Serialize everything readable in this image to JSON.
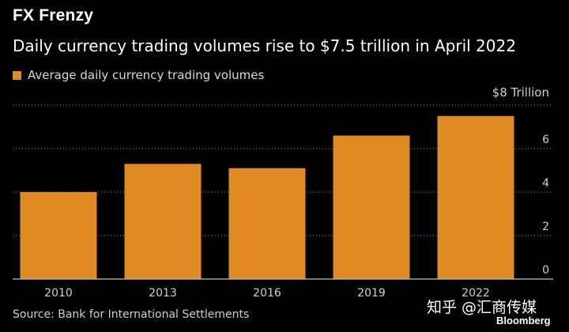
{
  "title": "FX Frenzy",
  "subtitle": "Daily currency trading volumes rise to $7.5 trillion in April 2022",
  "source": "Source: Bank for International Settlements",
  "watermark": "知乎 @汇商传媒",
  "brand": "Bloomberg",
  "colors": {
    "bar": "#e08a25",
    "background": "#000000",
    "grid": "#8a8a8a"
  },
  "chart_data": {
    "type": "bar",
    "categories": [
      "2010",
      "2013",
      "2016",
      "2019",
      "2022"
    ],
    "series": [
      {
        "name": "Average daily currency trading volumes",
        "values": [
          4.0,
          5.3,
          5.1,
          6.6,
          7.5
        ]
      }
    ],
    "ylabel": "$8 Trillion",
    "ylim": [
      0,
      8
    ],
    "yticks": [
      "0",
      "2",
      "4",
      "6"
    ],
    "grid": true,
    "legend_position": "top-left",
    "yaxis_position": "right"
  }
}
